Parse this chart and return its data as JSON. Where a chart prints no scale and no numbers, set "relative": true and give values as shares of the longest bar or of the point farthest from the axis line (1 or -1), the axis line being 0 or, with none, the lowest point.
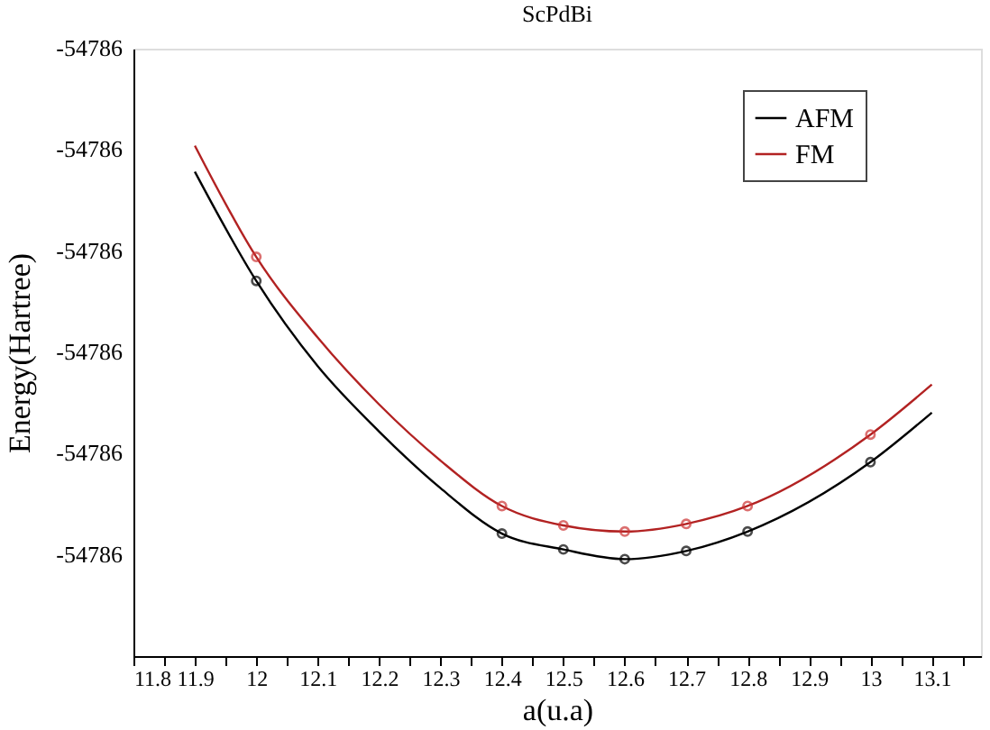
{
  "chart_data": {
    "type": "line",
    "title": "ScPdBi",
    "xlabel": "a(u.a)",
    "ylabel": "Energy(Hartree)",
    "relative": true,
    "xlim": [
      11.8,
      13.18
    ],
    "xticks": [
      11.8,
      {
        "value": 11.85,
        "label": null
      },
      11.9,
      {
        "value": 11.95,
        "label": null
      },
      12,
      {
        "value": 12.05,
        "label": null
      },
      12.1,
      {
        "value": 12.15,
        "label": null
      },
      12.2,
      {
        "value": 12.25,
        "label": null
      },
      12.3,
      {
        "value": 12.35,
        "label": null
      },
      12.4,
      {
        "value": 12.45,
        "label": null
      },
      12.5,
      {
        "value": 12.55,
        "label": null
      },
      12.6,
      {
        "value": 12.65,
        "label": null
      },
      12.7,
      {
        "value": 12.75,
        "label": null
      },
      12.8,
      {
        "value": 12.85,
        "label": null
      },
      12.9,
      {
        "value": 12.95,
        "label": null
      },
      13,
      {
        "value": 13.05,
        "label": null
      },
      13.1,
      {
        "value": 13.15,
        "label": null
      }
    ],
    "annotations": [
      "-54786",
      "-54786",
      "-54786",
      "-54786",
      "-54786",
      "-54786"
    ],
    "grid": false,
    "legend": "top right",
    "line_style": "solid",
    "series": [
      {
        "name": "AFM",
        "color": "#000000",
        "x": [
          11.9,
          12.0,
          12.1,
          12.2,
          12.3,
          12.4,
          12.5,
          12.6,
          12.7,
          12.8,
          13.0,
          13.1
        ],
        "values": [
          0.949,
          0.735,
          0.568,
          0.44,
          0.329,
          0.24,
          0.209,
          0.19,
          0.206,
          0.244,
          0.38,
          0.477
        ]
      },
      {
        "name": "FM",
        "color": "#b22222",
        "x": [
          11.9,
          12.0,
          12.1,
          12.2,
          12.3,
          12.4,
          12.5,
          12.6,
          12.7,
          12.8,
          13.0,
          13.1
        ],
        "values": [
          1,
          0.782,
          0.624,
          0.493,
          0.383,
          0.294,
          0.256,
          0.244,
          0.259,
          0.294,
          0.434,
          0.532
        ]
      },
      {
        "type": "scatter",
        "marker": "circle",
        "color": "#000000",
        "x": [
          12.0,
          12.4,
          12.5,
          12.6,
          12.7,
          12.8,
          13.0
        ],
        "values": [
          0.735,
          0.24,
          0.209,
          0.19,
          0.206,
          0.244,
          0.38
        ]
      },
      {
        "type": "scatter",
        "marker": "circle",
        "color": "#cc3333",
        "x": [
          12.0,
          12.4,
          12.5,
          12.6,
          12.7,
          12.8,
          13.0
        ],
        "values": [
          0.782,
          0.294,
          0.256,
          0.244,
          0.259,
          0.294,
          0.434
        ]
      }
    ]
  }
}
